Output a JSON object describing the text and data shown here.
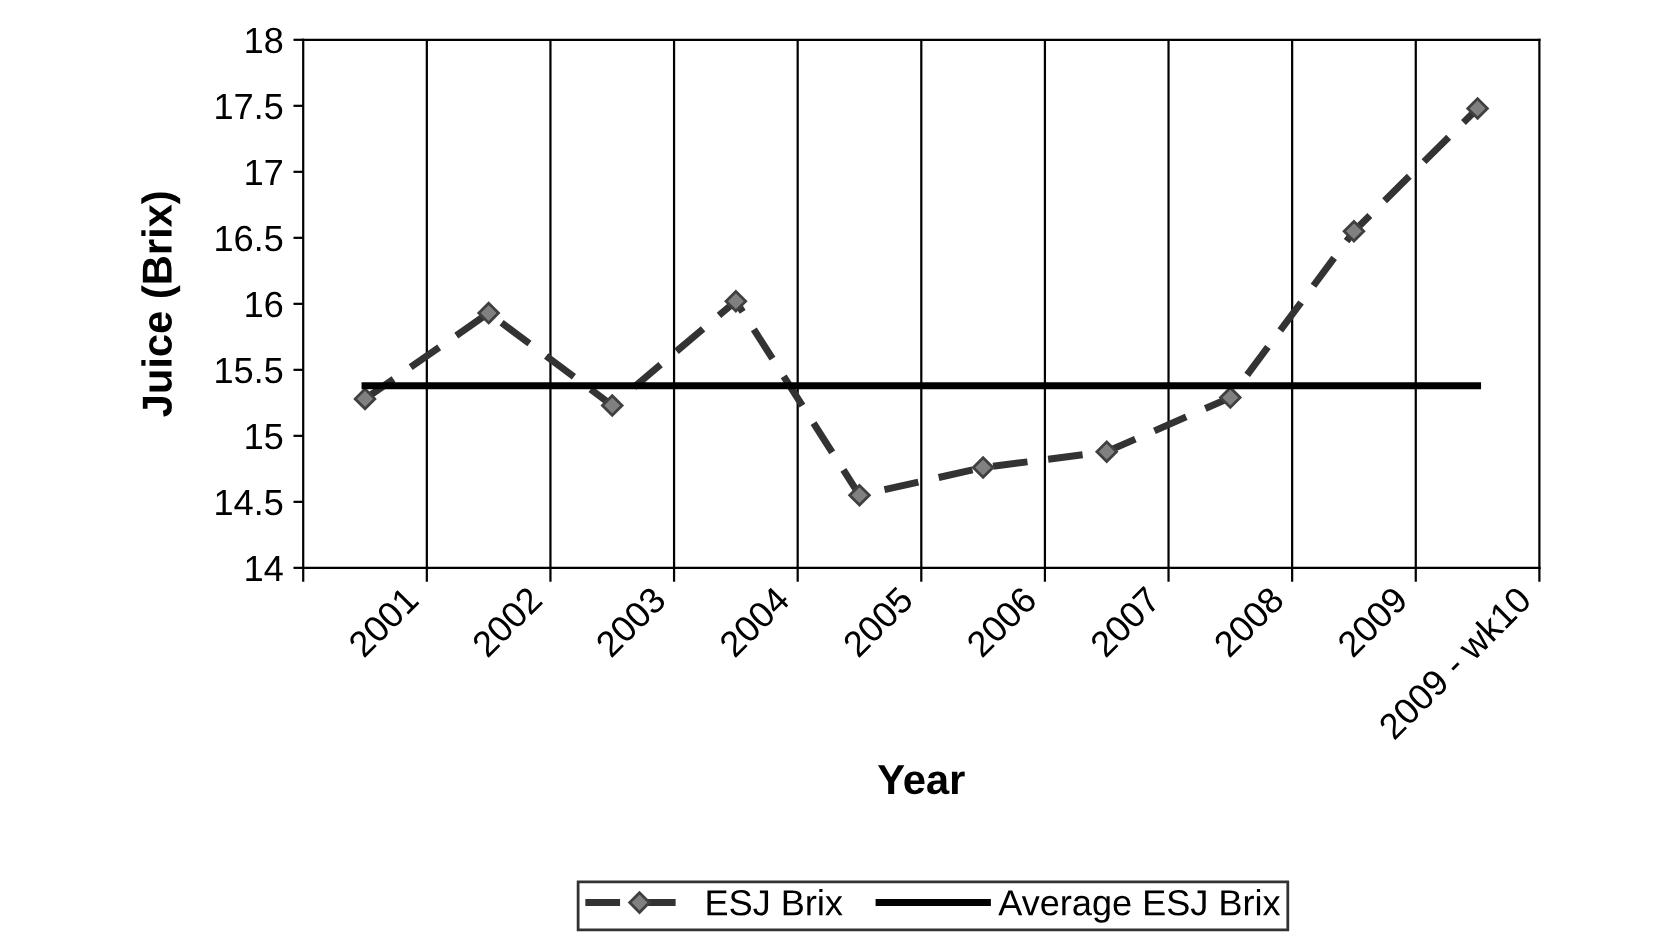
{
  "chart_data": {
    "type": "line",
    "xlabel": "Year",
    "ylabel": "Juice (Brix)",
    "categories": [
      "2001",
      "2002",
      "2003",
      "2004",
      "2005",
      "2006",
      "2007",
      "2008",
      "2009",
      "2009 - wk10"
    ],
    "series": [
      {
        "name": "ESJ Brix",
        "color": "#333333",
        "marker": "diamond",
        "line_style": "dashed",
        "values": [
          15.28,
          15.93,
          15.23,
          16.02,
          14.55,
          14.76,
          14.88,
          15.29,
          16.55,
          17.48
        ]
      },
      {
        "name": "Average ESJ Brix",
        "color": "#000000",
        "marker": "none",
        "line_style": "solid",
        "values": [
          15.38,
          15.38,
          15.38,
          15.38,
          15.38,
          15.38,
          15.38,
          15.38,
          15.38,
          15.38
        ]
      }
    ],
    "ylim": [
      14,
      18
    ],
    "yticks": [
      14,
      14.5,
      15,
      15.5,
      16,
      16.5,
      17,
      17.5,
      18
    ],
    "grid": "x",
    "legend": "bottom"
  }
}
